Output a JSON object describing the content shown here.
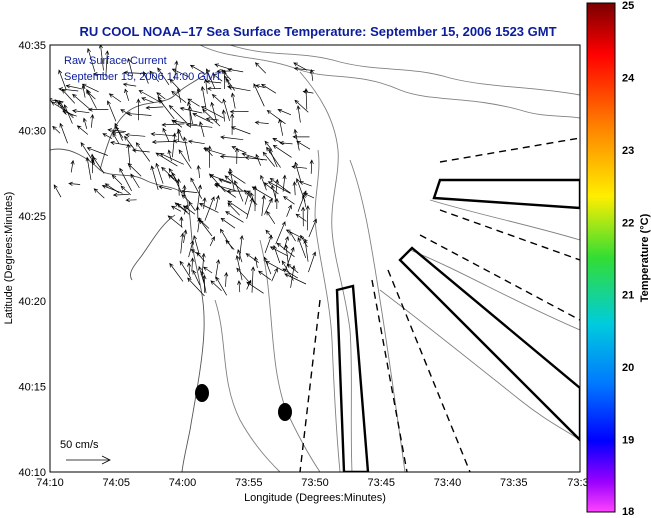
{
  "title": "RU COOL  NOAA–17  Sea Surface Temperature:  September 15, 2006 1523 GMT",
  "overlay": {
    "line1": "Raw Surface Current",
    "line2": "September 15, 2006 14:00 GMT"
  },
  "scale_arrow_label": "50 cm/s",
  "axes": {
    "xlabel": "Longitude (Degrees:Minutes)",
    "ylabel": "Latitude (Degrees:Minutes)",
    "x_ticks": [
      "74:10",
      "74:05",
      "74:00",
      "73:55",
      "73:50",
      "73:45",
      "73:40",
      "73:35",
      "73:3"
    ],
    "y_ticks": [
      "40:35",
      "40:30",
      "40:25",
      "40:20",
      "40:15",
      "40:10"
    ]
  },
  "colorbar": {
    "label": "Temperature (°C)",
    "ticks": [
      "25",
      "24",
      "23",
      "22",
      "21",
      "20",
      "19",
      "18"
    ],
    "min": 18,
    "max": 25
  },
  "colors": {
    "title": "#0b1d9b",
    "overlay_text": "#0b1d9b",
    "contours": "#808080",
    "vectors": "#000000"
  }
}
